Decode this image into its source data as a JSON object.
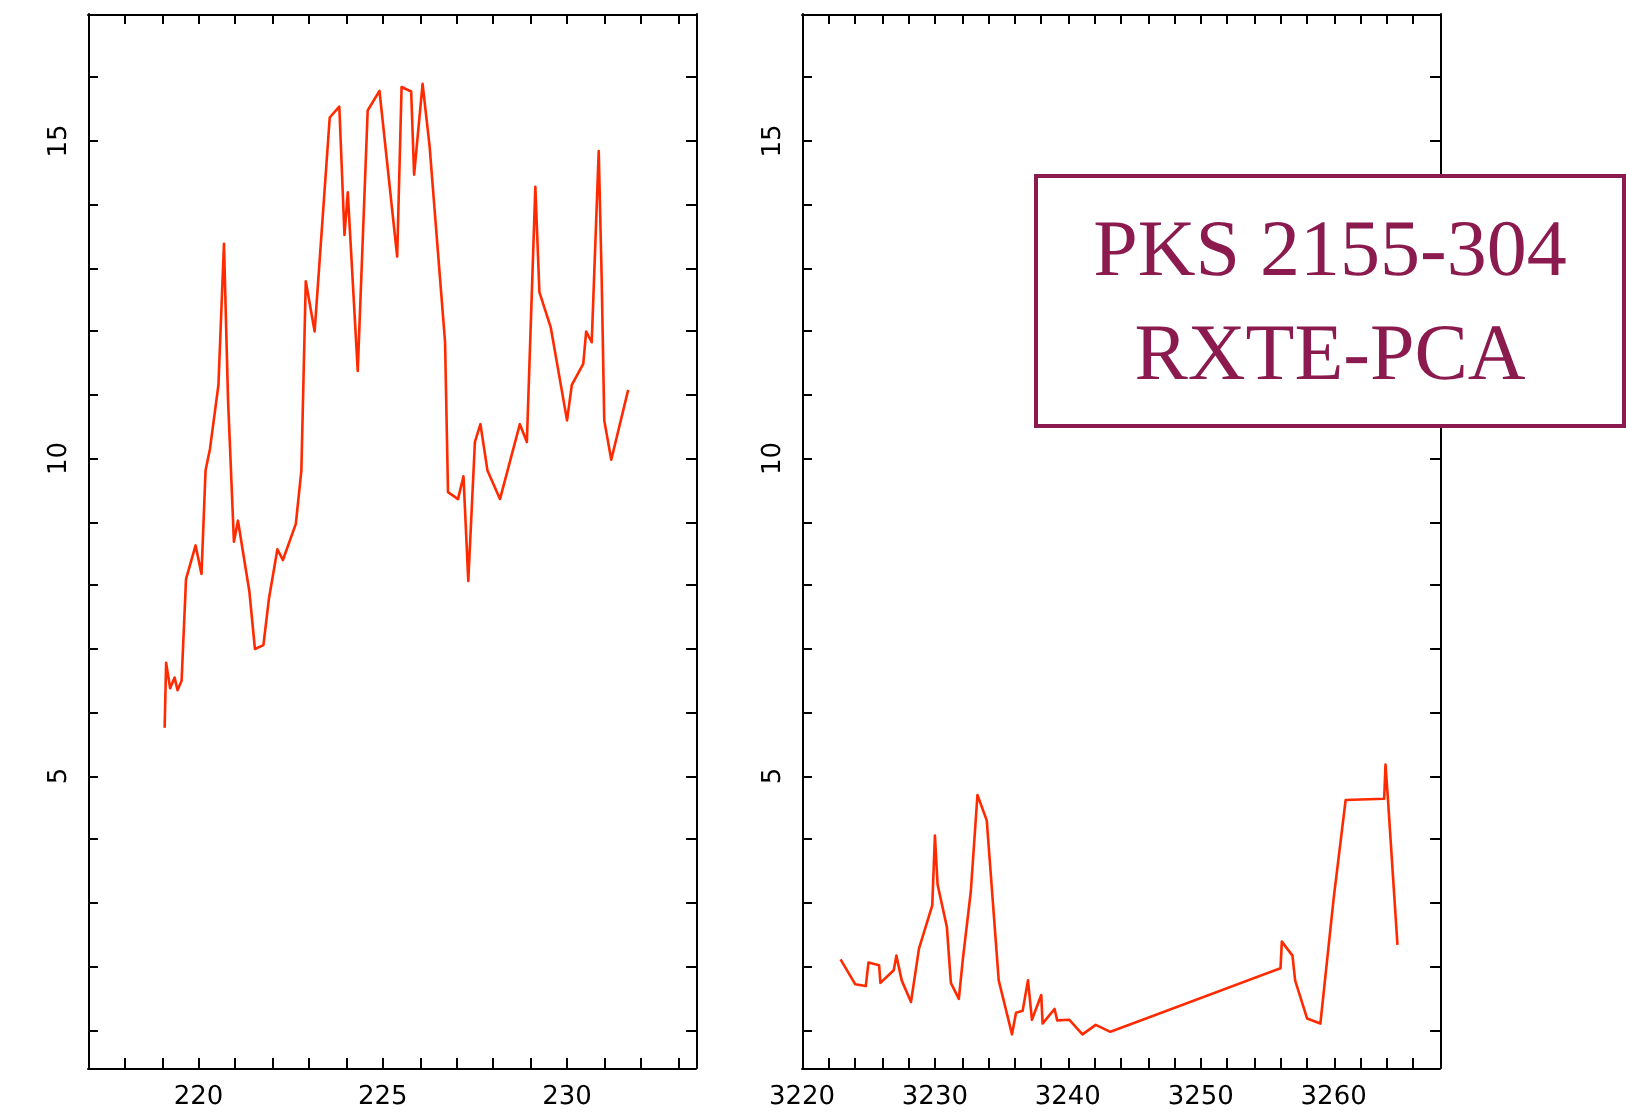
{
  "chart_data": [
    {
      "type": "line",
      "xlim": [
        217,
        233.5
      ],
      "ylim": [
        0.4,
        17
      ],
      "line_style": "solid",
      "xticks": [
        {
          "value": 218,
          "label": null
        },
        {
          "value": 219,
          "label": null
        },
        220,
        {
          "value": 221,
          "label": null
        },
        {
          "value": 222,
          "label": null
        },
        {
          "value": 223,
          "label": null
        },
        {
          "value": 224,
          "label": null
        },
        225,
        {
          "value": 226,
          "label": null
        },
        {
          "value": 227,
          "label": null
        },
        {
          "value": 228,
          "label": null
        },
        {
          "value": 229,
          "label": null
        },
        230,
        {
          "value": 231,
          "label": null
        },
        {
          "value": 232,
          "label": null
        },
        {
          "value": 233,
          "label": null
        }
      ],
      "yticks": [
        {
          "value": 1,
          "label": null
        },
        {
          "value": 2,
          "label": null
        },
        {
          "value": 3,
          "label": null
        },
        {
          "value": 4,
          "label": null
        },
        5,
        {
          "value": 6,
          "label": null
        },
        {
          "value": 7,
          "label": null
        },
        {
          "value": 8,
          "label": null
        },
        {
          "value": 9,
          "label": null
        },
        10,
        {
          "value": 11,
          "label": null
        },
        {
          "value": 12,
          "label": null
        },
        {
          "value": 13,
          "label": null
        },
        {
          "value": 14,
          "label": null
        },
        15,
        {
          "value": 16,
          "label": null
        },
        {
          "value": 17,
          "label": null
        }
      ],
      "series": [
        {
          "color": "#ff2a00",
          "x": [
            219.08,
            219.12,
            219.23,
            219.35,
            219.43,
            219.54,
            219.66,
            219.92,
            220.08,
            220.19,
            220.31,
            220.54,
            220.69,
            220.8,
            220.96,
            221.07,
            221.38,
            221.53,
            221.76,
            221.91,
            222.14,
            222.29,
            222.64,
            222.79,
            222.91,
            223.15,
            223.56,
            223.82,
            223.96,
            224.05,
            224.32,
            224.59,
            224.91,
            225.39,
            225.51,
            225.77,
            225.85,
            226.08,
            226.27,
            226.69,
            226.77,
            227.04,
            227.19,
            227.32,
            227.5,
            227.65,
            227.84,
            228.18,
            228.72,
            228.91,
            229.14,
            229.25,
            229.56,
            230.0,
            230.13,
            230.44,
            230.52,
            230.67,
            230.86,
            230.94,
            231.01,
            231.2,
            231.66
          ],
          "values": [
            5.76,
            6.78,
            6.38,
            6.55,
            6.35,
            6.5,
            8.1,
            8.63,
            8.18,
            9.81,
            10.15,
            11.16,
            13.38,
            10.93,
            8.69,
            9.02,
            7.9,
            7.0,
            7.06,
            7.79,
            8.57,
            8.4,
            8.97,
            9.81,
            12.79,
            12.0,
            15.37,
            15.54,
            13.52,
            14.19,
            11.38,
            15.48,
            15.79,
            13.18,
            15.85,
            15.78,
            14.47,
            15.9,
            14.92,
            11.83,
            9.47,
            9.36,
            9.72,
            8.07,
            10.26,
            10.54,
            9.81,
            9.36,
            10.54,
            10.26,
            14.28,
            12.62,
            12.06,
            10.6,
            11.16,
            11.49,
            12.0,
            11.83,
            14.84,
            12.84,
            10.6,
            9.98,
            11.08
          ]
        }
      ]
    },
    {
      "type": "line",
      "xlim": [
        3220,
        3268
      ],
      "ylim": [
        0.4,
        17
      ],
      "line_style": "solid",
      "xticks": [
        3220,
        {
          "value": 3222,
          "label": null
        },
        {
          "value": 3224,
          "label": null
        },
        {
          "value": 3226,
          "label": null
        },
        {
          "value": 3228,
          "label": null
        },
        3230,
        {
          "value": 3232,
          "label": null
        },
        {
          "value": 3234,
          "label": null
        },
        {
          "value": 3236,
          "label": null
        },
        {
          "value": 3238,
          "label": null
        },
        3240,
        {
          "value": 3242,
          "label": null
        },
        {
          "value": 3244,
          "label": null
        },
        {
          "value": 3246,
          "label": null
        },
        {
          "value": 3248,
          "label": null
        },
        3250,
        {
          "value": 3252,
          "label": null
        },
        {
          "value": 3254,
          "label": null
        },
        {
          "value": 3256,
          "label": null
        },
        {
          "value": 3258,
          "label": null
        },
        3260,
        {
          "value": 3262,
          "label": null
        },
        {
          "value": 3264,
          "label": null
        },
        {
          "value": 3266,
          "label": null
        }
      ],
      "yticks": [
        {
          "value": 1,
          "label": null
        },
        {
          "value": 2,
          "label": null
        },
        {
          "value": 3,
          "label": null
        },
        {
          "value": 4,
          "label": null
        },
        5,
        {
          "value": 6,
          "label": null
        },
        {
          "value": 7,
          "label": null
        },
        {
          "value": 8,
          "label": null
        },
        {
          "value": 9,
          "label": null
        },
        10,
        {
          "value": 11,
          "label": null
        },
        {
          "value": 12,
          "label": null
        },
        {
          "value": 13,
          "label": null
        },
        {
          "value": 14,
          "label": null
        },
        15,
        {
          "value": 16,
          "label": null
        },
        {
          "value": 17,
          "label": null
        }
      ],
      "annotations": [
        "PKS 2155-304",
        "RXTE-PCA"
      ],
      "series": [
        {
          "color": "#ff2a00",
          "x": [
            3222.9,
            3224.0,
            3224.8,
            3225.0,
            3225.8,
            3225.9,
            3226.9,
            3227.1,
            3227.5,
            3228.2,
            3228.8,
            3229.8,
            3230.0,
            3230.2,
            3230.9,
            3231.2,
            3231.8,
            3232.1,
            3232.7,
            3233.2,
            3233.9,
            3234.8,
            3235.8,
            3236.1,
            3236.6,
            3237.0,
            3237.3,
            3238.0,
            3238.1,
            3239.0,
            3239.2,
            3240.1,
            3241.1,
            3242.1,
            3243.2,
            3256.0,
            3256.1,
            3256.9,
            3257.1,
            3258.0,
            3259.0,
            3260.0,
            3260.9,
            3263.8,
            3263.9,
            3264.1,
            3264.8
          ],
          "values": [
            2.11,
            1.72,
            1.69,
            2.06,
            2.02,
            1.74,
            1.94,
            2.17,
            1.78,
            1.44,
            2.28,
            2.96,
            4.06,
            3.29,
            2.62,
            1.74,
            1.49,
            2.11,
            3.18,
            4.7,
            4.3,
            1.78,
            0.93,
            1.27,
            1.3,
            1.78,
            1.16,
            1.55,
            1.1,
            1.33,
            1.15,
            1.16,
            0.93,
            1.08,
            0.97,
            1.97,
            2.39,
            2.17,
            1.78,
            1.18,
            1.1,
            3.07,
            4.62,
            4.64,
            5.18,
            4.58,
            2.34
          ]
        }
      ]
    }
  ]
}
